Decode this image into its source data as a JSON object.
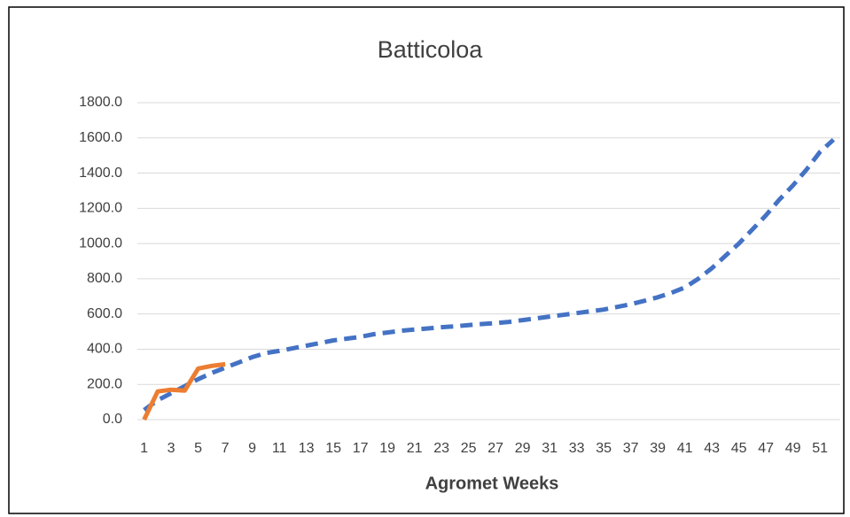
{
  "chart_data": {
    "type": "line",
    "title": "Batticoloa",
    "x_label": "Agromet Weeks",
    "categories": [
      1,
      null,
      3,
      null,
      5,
      null,
      7,
      null,
      9,
      null,
      11,
      null,
      13,
      null,
      15,
      null,
      17,
      null,
      19,
      null,
      21,
      null,
      23,
      null,
      25,
      null,
      27,
      null,
      29,
      null,
      31,
      null,
      33,
      null,
      35,
      null,
      37,
      null,
      39,
      null,
      41,
      null,
      43,
      null,
      45,
      null,
      47,
      null,
      49,
      null,
      51,
      null
    ],
    "series": [
      {
        "color": "#4472c4",
        "dashed": true,
        "values": [
          55,
          110,
          150,
          190,
          230,
          265,
          295,
          325,
          355,
          378,
          390,
          405,
          420,
          435,
          450,
          460,
          470,
          485,
          495,
          505,
          512,
          518,
          525,
          530,
          537,
          543,
          548,
          555,
          565,
          575,
          585,
          595,
          605,
          615,
          625,
          640,
          655,
          675,
          695,
          720,
          750,
          800,
          860,
          930,
          1000,
          1080,
          1160,
          1250,
          1330,
          1420,
          1520,
          1590
        ]
      },
      {
        "color": "#ed7d31",
        "dashed": false,
        "values": [
          0,
          160,
          170,
          165,
          290,
          305,
          315,
          null,
          null,
          null,
          null,
          null,
          null,
          null,
          null,
          null,
          null,
          null,
          null,
          null,
          null,
          null,
          null,
          null,
          null,
          null,
          null,
          null,
          null,
          null,
          null,
          null,
          null,
          null,
          null,
          null,
          null,
          null,
          null,
          null,
          null,
          null,
          null,
          null,
          null,
          null,
          null,
          null,
          null,
          null,
          null,
          null
        ]
      }
    ],
    "ylim": [
      0,
      1800
    ],
    "yticks": [
      {
        "value": 0,
        "label": "0.0"
      },
      {
        "value": 200,
        "label": "200.0"
      },
      {
        "value": 400,
        "label": "400.0"
      },
      {
        "value": 600,
        "label": "600.0"
      },
      {
        "value": 800,
        "label": "800.0"
      },
      {
        "value": 1000,
        "label": "1000.0"
      },
      {
        "value": 1200,
        "label": "1200.0"
      },
      {
        "value": 1400,
        "label": "1400.0"
      },
      {
        "value": 1600,
        "label": "1600.0"
      },
      {
        "value": 1800,
        "label": "1800.0"
      }
    ],
    "grid": true
  }
}
